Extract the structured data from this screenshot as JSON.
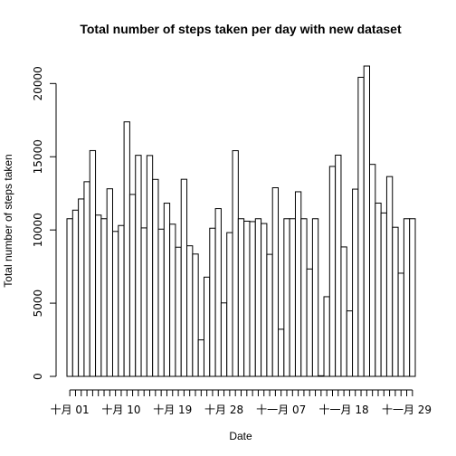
{
  "chart_data": {
    "type": "bar",
    "title": "Total number of steps taken per day with new dataset",
    "xlabel": "Date",
    "ylabel": "Total number of steps taken",
    "ylim": [
      0,
      21194
    ],
    "yticks": [
      0,
      5000,
      10000,
      15000,
      20000
    ],
    "xtick_labels": [
      "十月 01",
      "十月 10",
      "十月 19",
      "十月 28",
      "十一月 07",
      "十一月 18",
      "十一月 29"
    ],
    "xtick_positions": [
      0,
      9,
      18,
      27,
      37,
      48,
      59
    ],
    "n_days": 61,
    "values": [
      10766,
      11352,
      12116,
      13294,
      15420,
      11015,
      10766,
      12811,
      9900,
      10304,
      17382,
      12426,
      15098,
      10139,
      15084,
      13452,
      10056,
      11829,
      10395,
      8821,
      13460,
      8918,
      8355,
      2492,
      6778,
      10119,
      11458,
      5018,
      9819,
      15414,
      10766,
      10600,
      10571,
      10766,
      10439,
      8334,
      12883,
      3219,
      10766,
      10766,
      12608,
      10765,
      7336,
      10766,
      41,
      5441,
      14339,
      15110,
      8841,
      4472,
      12787,
      20427,
      21194,
      14478,
      11834,
      11162,
      13646,
      10183,
      7047,
      10766,
      10766
    ],
    "grid": false,
    "legend": "none"
  }
}
